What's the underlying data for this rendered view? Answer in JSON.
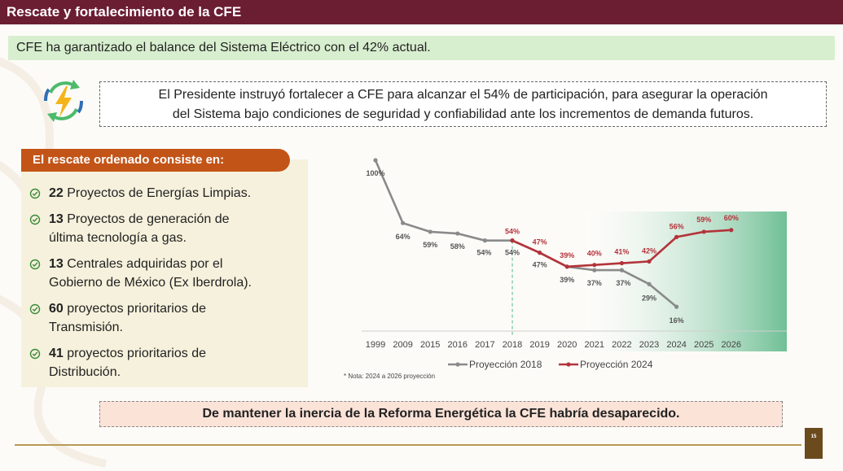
{
  "header": {
    "title": "Rescate y fortalecimiento de la CFE"
  },
  "banner": {
    "text": "CFE ha garantizado el balance del Sistema Eléctrico con el 42% actual."
  },
  "instruction": {
    "line1": "El Presidente instruyó fortalecer a CFE para alcanzar el 54% de participación, para asegurar la operación",
    "line2": "del Sistema bajo condiciones de seguridad y confiabilidad ante los incrementos de demanda futuros."
  },
  "rescue": {
    "title": "El rescate ordenado consiste en:",
    "items": [
      {
        "count": "22",
        "line1": " Proyectos de Energías Limpias.",
        "line2": ""
      },
      {
        "count": "13",
        "line1": " Proyectos de generación de",
        "line2": "última tecnología a gas."
      },
      {
        "count": "13",
        "line1": " Centrales adquiridas por el",
        "line2": "Gobierno de México (Ex Iberdrola)."
      },
      {
        "count": "60",
        "line1": " proyectos prioritarios de",
        "line2": "Transmisión."
      },
      {
        "count": "41",
        "line1": " proyectos prioritarios de",
        "line2": "Distribución."
      }
    ]
  },
  "chart_data": {
    "type": "line",
    "categories": [
      "1999",
      "2009",
      "2015",
      "2016",
      "2017",
      "2018",
      "2019",
      "2020",
      "2021",
      "2022",
      "2023",
      "2024",
      "2025",
      "2026"
    ],
    "series": [
      {
        "name": "Proyección 2018",
        "color": "#8a8a8a",
        "values": [
          100,
          64,
          59,
          58,
          54,
          54,
          47,
          39,
          37,
          37,
          29,
          16,
          null,
          null
        ],
        "labels": [
          "100%",
          "64%",
          "59%",
          "58%",
          "54%",
          "54%",
          "47%",
          "39%",
          "37%",
          "37%",
          "29%",
          "16%",
          "",
          ""
        ]
      },
      {
        "name": "Proyección 2024",
        "color": "#b3333a",
        "values": [
          null,
          null,
          null,
          null,
          null,
          54,
          47,
          39,
          40,
          41,
          42,
          56,
          59,
          60
        ],
        "labels": [
          "",
          "",
          "",
          "",
          "",
          "54%",
          "47%",
          "39%",
          "40%",
          "41%",
          "42%",
          "56%",
          "59%",
          "60%"
        ]
      }
    ],
    "ylim": [
      10,
      100
    ],
    "legend": "bottom",
    "note": "* Nota: 2024 a 2026 proyección"
  },
  "bottom": {
    "text": "De mantener la inercia de la Reforma Energética la CFE habría desaparecido."
  },
  "footer": {
    "page_number": "15"
  }
}
